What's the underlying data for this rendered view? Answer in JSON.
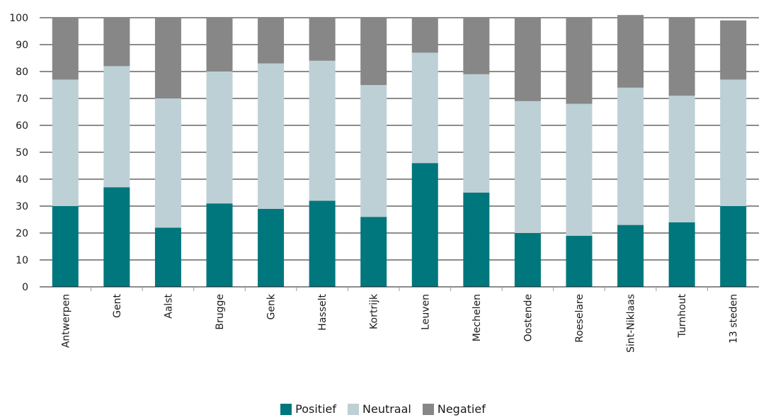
{
  "chart_data": {
    "type": "bar",
    "stacked": true,
    "categories": [
      "Antwerpen",
      "Gent",
      "Aalst",
      "Brugge",
      "Genk",
      "Hasselt",
      "Kortrijk",
      "Leuven",
      "Mechelen",
      "Oostende",
      "Roeselare",
      "Sint-Niklaas",
      "Turnhout",
      "13 steden"
    ],
    "series": [
      {
        "name": "Positief",
        "color": "#00777d",
        "values": [
          30,
          37,
          22,
          31,
          29,
          32,
          26,
          46,
          35,
          20,
          19,
          23,
          24,
          30
        ]
      },
      {
        "name": "Neutraal",
        "color": "#bdd0d5",
        "values": [
          47,
          45,
          48,
          49,
          54,
          52,
          49,
          41,
          44,
          49,
          49,
          51,
          47,
          47
        ]
      },
      {
        "name": "Negatief",
        "color": "#878787",
        "values": [
          23,
          18,
          30,
          20,
          17,
          16,
          25,
          13,
          21,
          31,
          32,
          27,
          29,
          22
        ]
      }
    ],
    "ylim": [
      0,
      100
    ],
    "yticks": [
      0,
      10,
      20,
      30,
      40,
      50,
      60,
      70,
      80,
      90,
      100
    ],
    "grid": true,
    "legend_position": "bottom-center"
  }
}
